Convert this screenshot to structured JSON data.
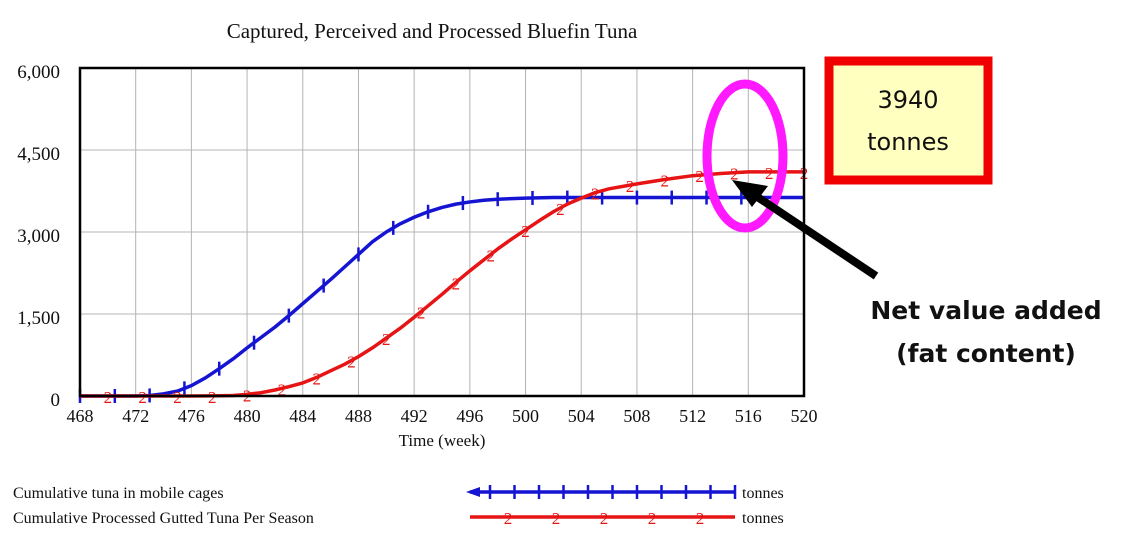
{
  "chart_data": {
    "type": "line",
    "title": "Captured, Perceived and Processed Bluefin Tuna",
    "xlabel": "Time (week)",
    "ylabel": "",
    "xlim": [
      468,
      520
    ],
    "ylim": [
      0,
      6000
    ],
    "x_ticks": [
      "468",
      "472",
      "476",
      "480",
      "484",
      "488",
      "492",
      "496",
      "500",
      "504",
      "508",
      "512",
      "516",
      "520"
    ],
    "y_ticks": [
      "0",
      "1,500",
      "3,000",
      "4,500",
      "6,000"
    ],
    "grid": true,
    "series": [
      {
        "name": "Cumulative tuna in mobile cages",
        "unit": "tonnes",
        "color": "#1414d2",
        "marker": "|",
        "x": [
          468,
          470,
          472,
          473,
          474,
          475,
          476,
          477,
          478,
          479,
          480,
          481,
          482,
          483,
          484,
          485,
          486,
          487,
          488,
          489,
          490,
          491,
          492,
          493,
          494,
          495,
          496,
          497,
          498,
          499,
          500,
          502,
          504,
          506,
          508,
          510,
          512,
          514,
          516,
          518,
          520
        ],
        "y": [
          0,
          0,
          0,
          10,
          40,
          90,
          190,
          330,
          500,
          680,
          880,
          1070,
          1260,
          1470,
          1690,
          1910,
          2130,
          2360,
          2590,
          2820,
          3000,
          3150,
          3270,
          3370,
          3450,
          3510,
          3550,
          3580,
          3600,
          3610,
          3620,
          3630,
          3630,
          3630,
          3630,
          3630,
          3630,
          3630,
          3630,
          3630,
          3630
        ]
      },
      {
        "name": "Cumulative Processed Gutted Tuna Per Season",
        "unit": "tonnes",
        "color": "#e61414",
        "marker": "2",
        "x": [
          468,
          470,
          472,
          474,
          476,
          478,
          479,
          480,
          481,
          482,
          483,
          484,
          485,
          486,
          487,
          488,
          489,
          490,
          491,
          492,
          493,
          494,
          495,
          496,
          497,
          498,
          499,
          500,
          501,
          502,
          503,
          504,
          505,
          506,
          508,
          510,
          512,
          514,
          516,
          518,
          520
        ],
        "y": [
          0,
          0,
          0,
          0,
          0,
          5,
          10,
          30,
          60,
          110,
          170,
          240,
          340,
          460,
          580,
          720,
          880,
          1060,
          1240,
          1440,
          1650,
          1860,
          2080,
          2290,
          2490,
          2690,
          2870,
          3040,
          3210,
          3370,
          3510,
          3620,
          3720,
          3790,
          3880,
          3960,
          4030,
          4070,
          4100,
          4100,
          4100
        ]
      }
    ],
    "legend_position": "bottom",
    "annotations": {
      "box_value": "3940",
      "box_unit": "tonnes",
      "arrow_label_line1": "Net value added",
      "arrow_label_line2": "(fat content)"
    }
  }
}
